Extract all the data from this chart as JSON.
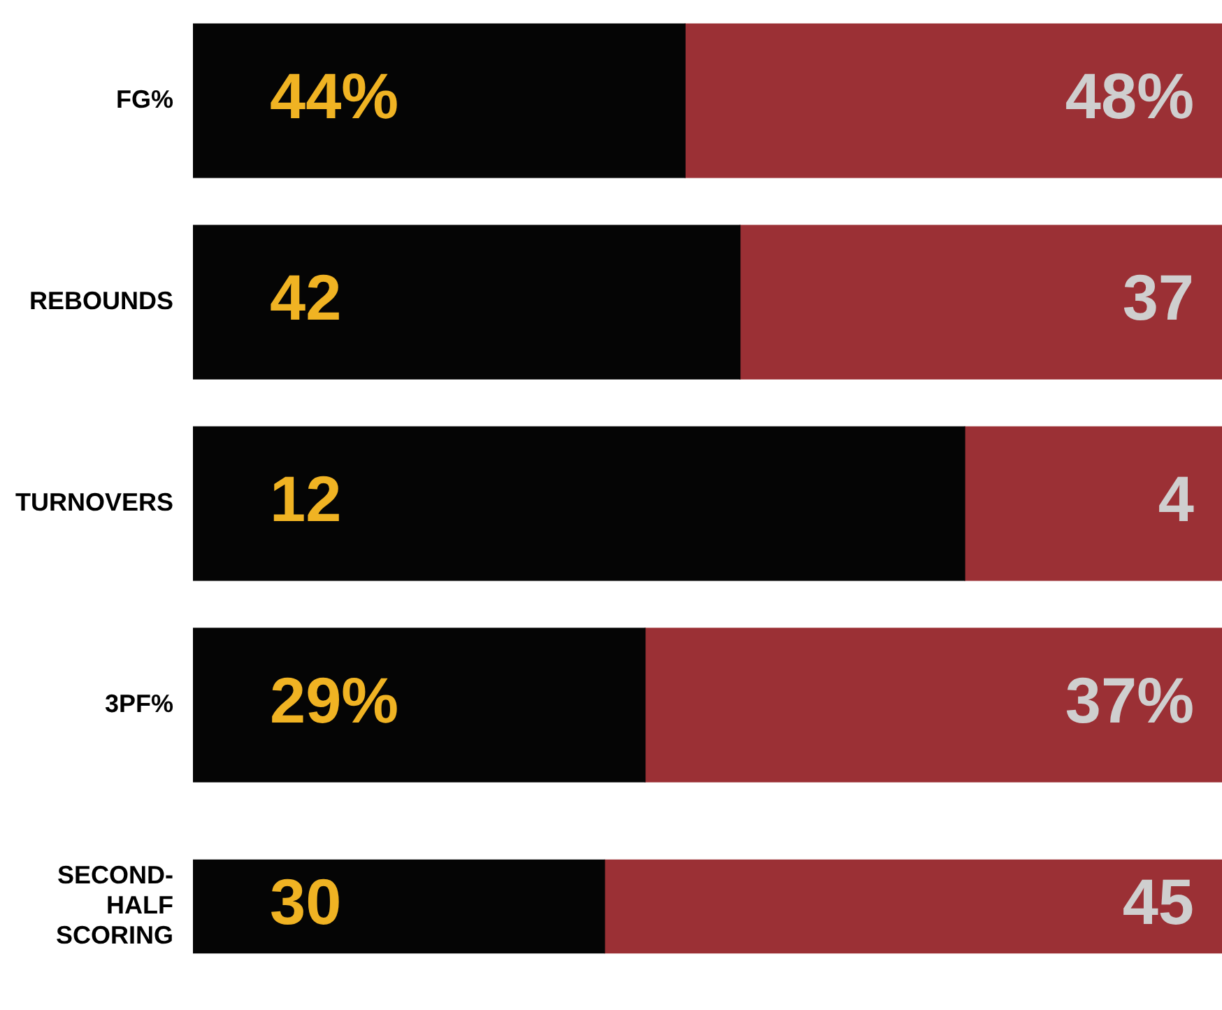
{
  "chart_data": [
    {
      "type": "bar",
      "orientation": "horizontal",
      "stacked": true,
      "grid": false,
      "tick_labels": "y",
      "xlim": [
        0,
        92
      ],
      "categories": [
        "FG%"
      ],
      "series": [
        {
          "color": "#050505",
          "values": [
            44
          ],
          "value_labels": [
            "44%"
          ]
        },
        {
          "color": "#9b3035",
          "values": [
            48
          ],
          "value_labels": [
            "48%"
          ]
        }
      ]
    },
    {
      "type": "bar",
      "orientation": "horizontal",
      "stacked": true,
      "grid": false,
      "tick_labels": "y",
      "xlim": [
        0,
        79
      ],
      "categories": [
        "REBOUNDS"
      ],
      "series": [
        {
          "color": "#050505",
          "values": [
            42
          ],
          "value_labels": [
            "42"
          ]
        },
        {
          "color": "#9b3035",
          "values": [
            37
          ],
          "value_labels": [
            "37"
          ]
        }
      ]
    },
    {
      "type": "bar",
      "orientation": "horizontal",
      "stacked": true,
      "grid": false,
      "tick_labels": "y",
      "xlim": [
        0,
        16
      ],
      "categories": [
        "TURNOVERS"
      ],
      "series": [
        {
          "color": "#050505",
          "values": [
            12
          ],
          "value_labels": [
            "12"
          ]
        },
        {
          "color": "#9b3035",
          "values": [
            4
          ],
          "value_labels": [
            "4"
          ]
        }
      ]
    },
    {
      "type": "bar",
      "orientation": "horizontal",
      "stacked": true,
      "grid": false,
      "tick_labels": "y",
      "xlim": [
        0,
        66
      ],
      "categories": [
        "3PF%"
      ],
      "series": [
        {
          "color": "#050505",
          "values": [
            29
          ],
          "value_labels": [
            "29%"
          ]
        },
        {
          "color": "#9b3035",
          "values": [
            37
          ],
          "value_labels": [
            "37%"
          ]
        }
      ]
    },
    {
      "type": "bar",
      "orientation": "horizontal",
      "stacked": true,
      "grid": false,
      "tick_labels": "y",
      "xlim": [
        0,
        75
      ],
      "categories": [
        "SECOND-HALF SCORING"
      ],
      "series": [
        {
          "color": "#050505",
          "values": [
            30
          ],
          "value_labels": [
            "30"
          ]
        },
        {
          "color": "#9b3035",
          "values": [
            45
          ],
          "value_labels": [
            "45"
          ]
        }
      ]
    }
  ]
}
